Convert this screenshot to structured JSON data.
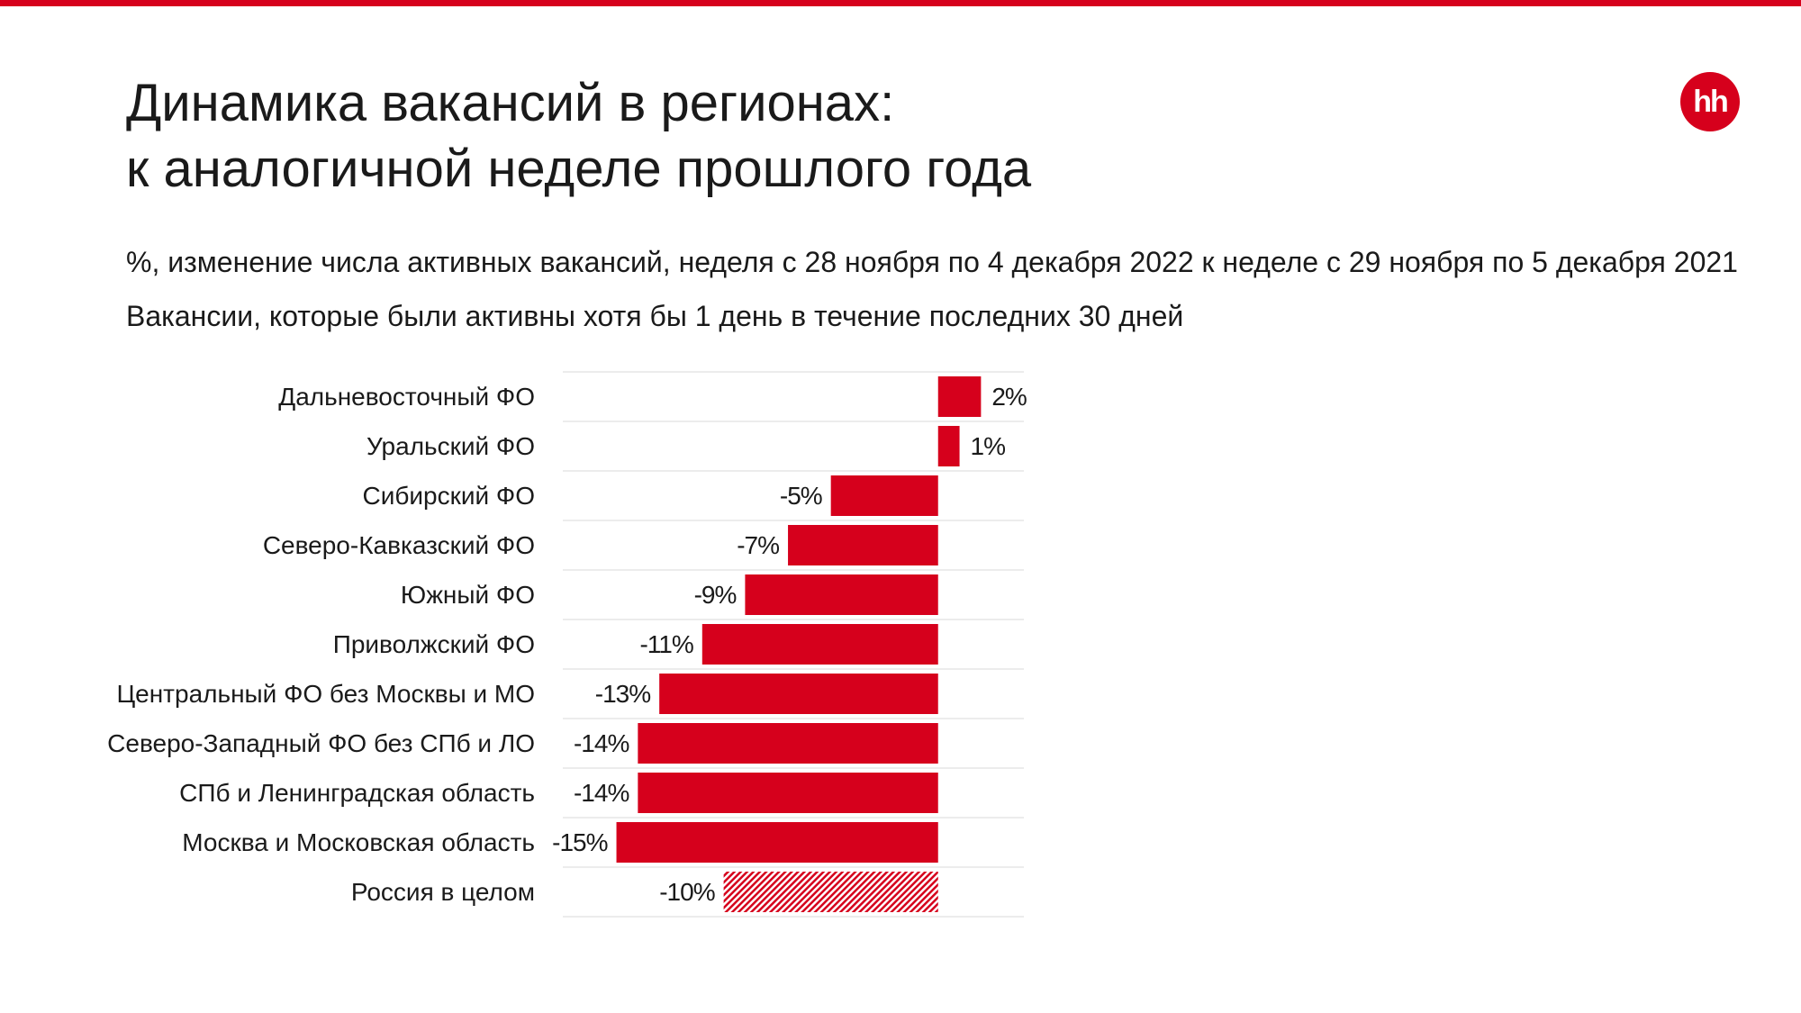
{
  "header": {
    "title_line1": "Динамика вакансий в регионах:",
    "title_line2": "к аналогичной неделе прошлого года",
    "subtitle": "%, изменение числа активных вакансий, неделя с 28 ноября по 4 декабря 2022 к неделе с 29 ноября по 5 декабря 2021",
    "note": "Вакансии, которые были активны хотя бы 1 день в течение последних 30 дней",
    "logo_text": "hh"
  },
  "colors": {
    "accent": "#d6001c",
    "grid": "#e6e6e6"
  },
  "chart_data": {
    "type": "bar",
    "orientation": "horizontal",
    "categories": [
      "Дальневосточный ФО",
      "Уральский ФО",
      "Сибирский ФО",
      "Северо-Кавказский ФО",
      "Южный ФО",
      "Приволжский ФО",
      "Центральный ФО без Москвы и МО",
      "Северо-Западный ФО без СПб и ЛО",
      "СПб и Ленинградская область",
      "Москва и Московская область",
      "Россия в целом"
    ],
    "values": [
      2,
      1,
      -5,
      -7,
      -9,
      -11,
      -13,
      -14,
      -14,
      -15,
      -10
    ],
    "value_labels": [
      "2%",
      "1%",
      "-5%",
      "-7%",
      "-9%",
      "-11%",
      "-13%",
      "-14%",
      "-14%",
      "-15%",
      "-10%"
    ],
    "highlight": [
      false,
      false,
      false,
      false,
      false,
      false,
      false,
      false,
      false,
      false,
      true
    ],
    "xlim": [
      -17.5,
      4
    ],
    "grid": true
  }
}
